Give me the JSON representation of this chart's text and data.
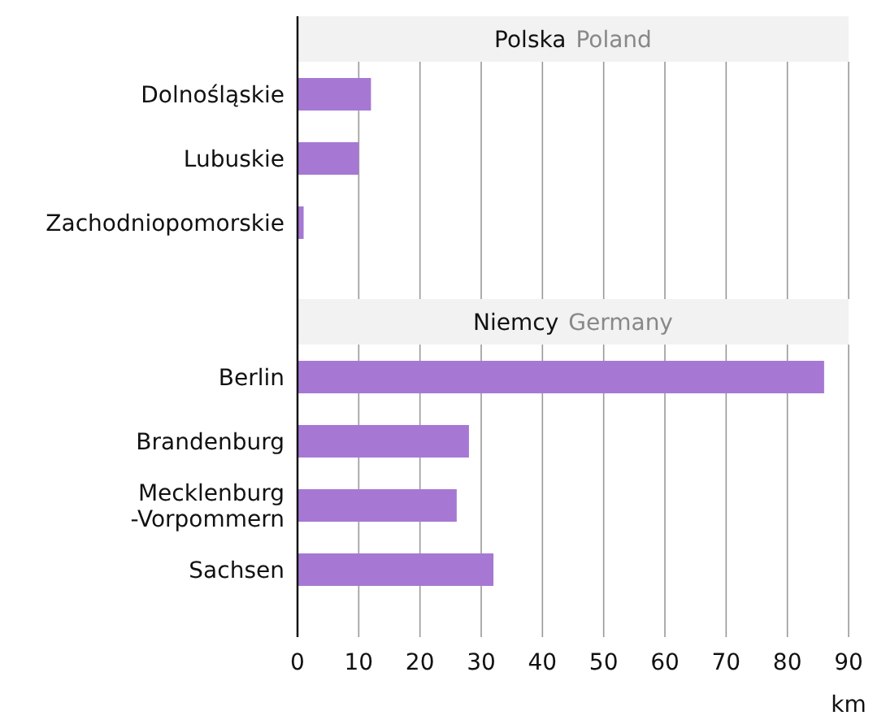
{
  "chart_data": [
    {
      "type": "bar",
      "orientation": "horizontal",
      "title": "Polska",
      "subtitle": "Poland",
      "categories": [
        "Dolnośląskie",
        "Lubuskie",
        "Zachodniopomorskie"
      ],
      "values": [
        12,
        10,
        1
      ],
      "color": "#a678d4",
      "xlim": [
        0,
        90
      ],
      "xticks": [
        0,
        10,
        20,
        30,
        40,
        50,
        60,
        70,
        80,
        90
      ],
      "grid": "x",
      "tick_labels": "y"
    },
    {
      "type": "bar",
      "orientation": "horizontal",
      "title": "Niemcy",
      "subtitle": "Germany",
      "categories": [
        "Berlin",
        "Brandenburg",
        "Mecklenburg-Vorpommern",
        "Sachsen"
      ],
      "values": [
        86,
        28,
        26,
        32
      ],
      "color": "#a678d4",
      "xlim": [
        0,
        90
      ],
      "xticks": [
        0,
        10,
        20,
        30,
        40,
        50,
        60,
        70,
        80,
        90
      ],
      "grid": "x",
      "xlabel": "km"
    }
  ]
}
